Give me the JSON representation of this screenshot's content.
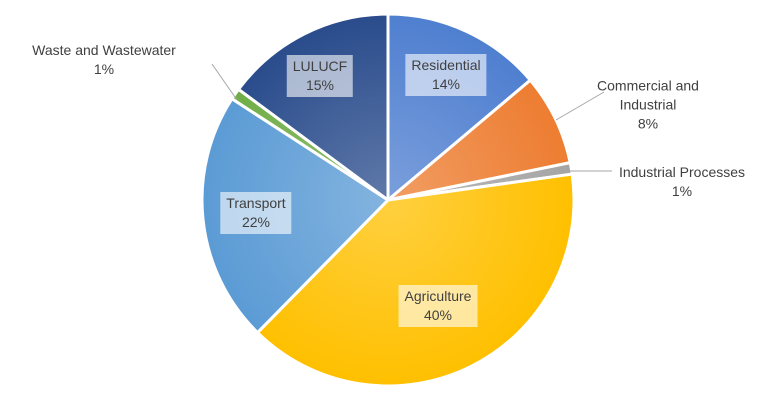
{
  "chart_data": {
    "type": "pie",
    "categories": [
      "Residential",
      "Commercial and Industrial",
      "Industrial Processes",
      "Agriculture",
      "Transport",
      "Waste and Wastewater",
      "LULUCF"
    ],
    "values": [
      14,
      8,
      1,
      40,
      22,
      1,
      15
    ],
    "value_labels": [
      "14%",
      "8%",
      "1%",
      "40%",
      "22%",
      "1%",
      "15%"
    ],
    "colors": [
      "#4f7fd0",
      "#ed7d31",
      "#a5a5a5",
      "#ffc000",
      "#5b9bd5",
      "#70ad47",
      "#2a4c8c"
    ]
  }
}
